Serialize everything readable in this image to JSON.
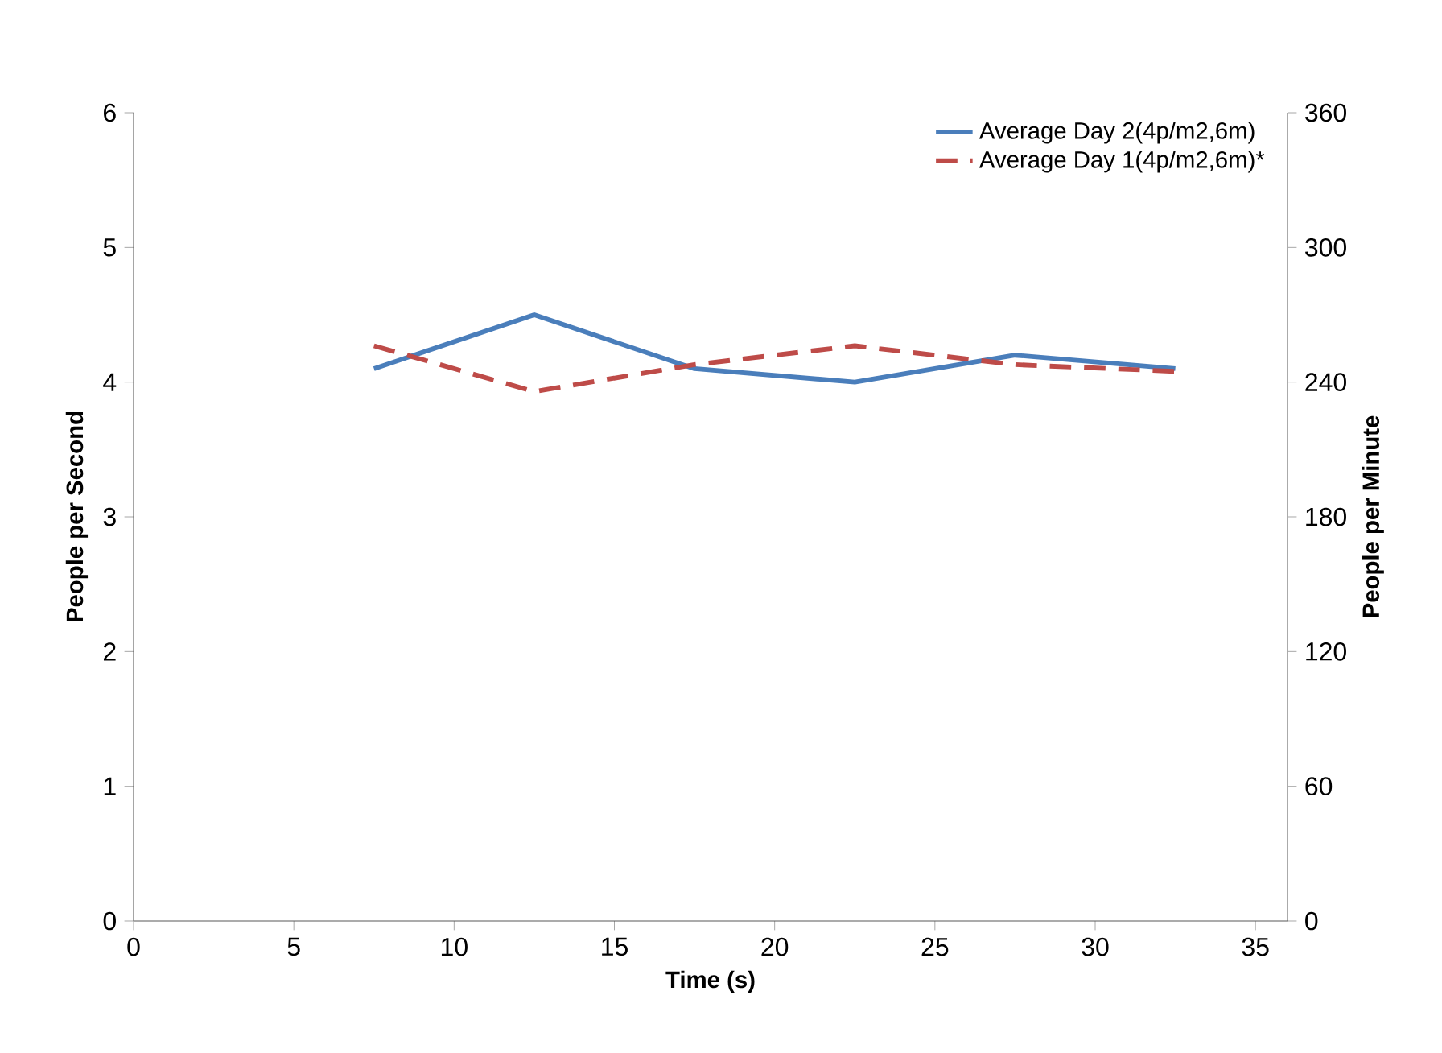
{
  "chart_data": {
    "type": "line",
    "xlabel": "Time (s)",
    "ylabel": "People per Second",
    "y2label": "People per Minute",
    "x": [
      7.5,
      12.5,
      17.5,
      22.5,
      27.5,
      32.5
    ],
    "series": [
      {
        "name": "Average Day 2(4p/m2,6m)",
        "color": "#4a7ebb",
        "line_style": "solid",
        "values": [
          4.1,
          4.5,
          4.1,
          4.0,
          4.2,
          4.1
        ]
      },
      {
        "name": "Average Day 1(4p/m2,6m)*",
        "color": "#be4b48",
        "line_style": "dashed",
        "values": [
          4.27,
          3.93,
          4.13,
          4.27,
          4.13,
          4.08
        ]
      }
    ],
    "xlim": [
      0,
      36
    ],
    "xticks": [
      0,
      5,
      10,
      15,
      20,
      25,
      30,
      35
    ],
    "ylim": [
      0,
      6
    ],
    "yticks": [
      0,
      1,
      2,
      3,
      4,
      5,
      6
    ],
    "y2lim": [
      0,
      360
    ],
    "y2ticks": [
      0,
      60,
      120,
      180,
      240,
      300,
      360
    ],
    "grid": false,
    "legend": "top right",
    "marker": "none"
  }
}
